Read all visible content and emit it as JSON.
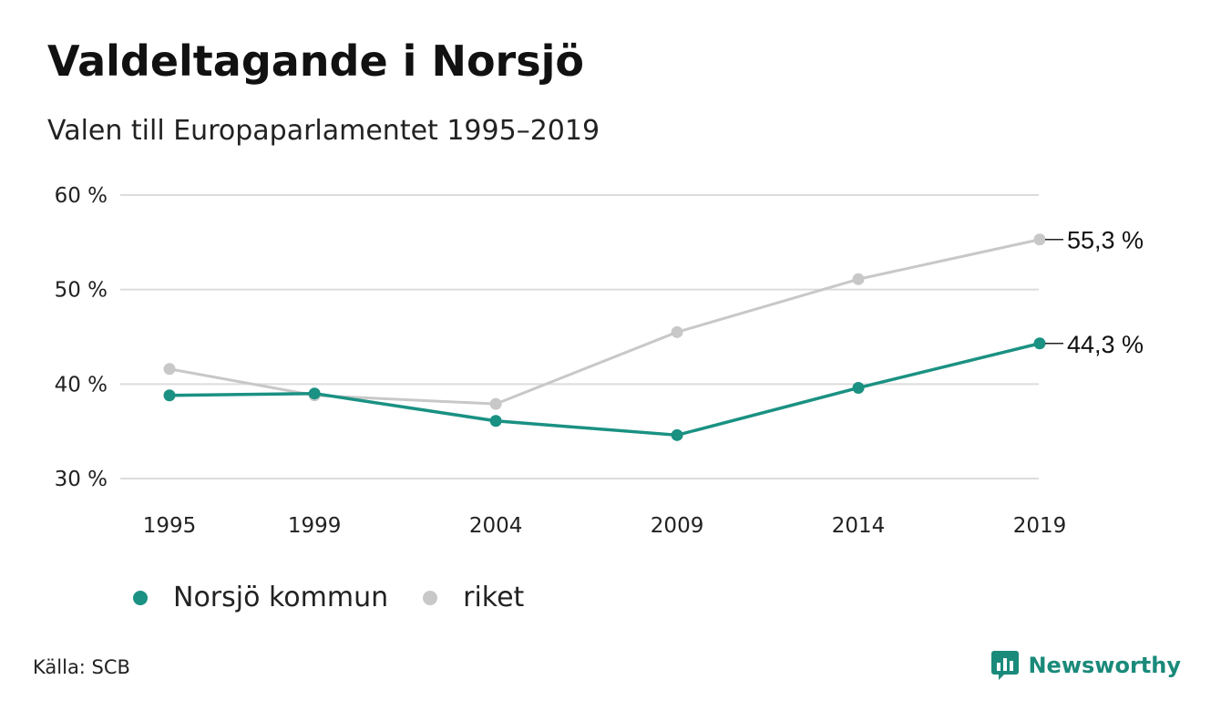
{
  "title": "Valdeltagande i Norsjö",
  "subtitle": "Valen till Europaparlamentet 1995–2019",
  "source": "Källa: SCB",
  "brand": {
    "name": "Newsworthy",
    "icon": "newsworthy-logo-icon",
    "color": "#1a8a7a"
  },
  "colors": {
    "norsjo": "#1a9182",
    "riket": "#c8c8c8",
    "grid": "#dcdcdc",
    "axis_text": "#222222"
  },
  "chart_data": {
    "type": "line",
    "title": "Valdeltagande i Norsjö",
    "subtitle": "Valen till Europaparlamentet 1995–2019",
    "categories": [
      "1995",
      "1999",
      "2004",
      "2009",
      "2014",
      "2019"
    ],
    "x": [
      1995,
      1999,
      2004,
      2009,
      2014,
      2019
    ],
    "ylim": [
      30,
      60
    ],
    "yticks": [
      30,
      40,
      50,
      60
    ],
    "ytick_labels": [
      "30 %",
      "40 %",
      "50 %",
      "60 %"
    ],
    "grid": true,
    "legend_position": "bottom-left",
    "series": [
      {
        "name": "Norsjö kommun",
        "key": "norsjo",
        "values": [
          38.8,
          39.0,
          36.1,
          34.6,
          39.6,
          44.3
        ],
        "end_label": "44,3 %"
      },
      {
        "name": "riket",
        "key": "riket",
        "values": [
          41.6,
          38.8,
          37.9,
          45.5,
          51.1,
          55.3
        ],
        "end_label": "55,3 %"
      }
    ]
  }
}
